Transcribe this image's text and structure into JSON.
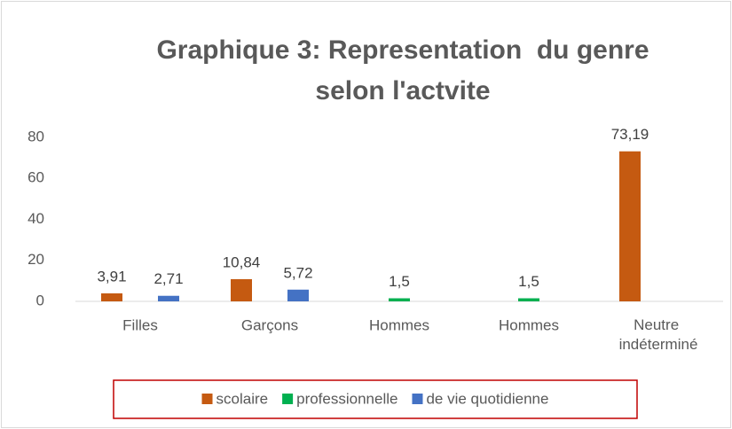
{
  "chart_data": {
    "type": "bar",
    "title": [
      "Graphique 3: Representation  du genre",
      "selon l'actvite"
    ],
    "categories": [
      "Filles",
      "Garçons",
      "Hommes",
      "Hommes",
      "Neutre indéterminé"
    ],
    "series": [
      {
        "name": "scolaire",
        "color": "#c55a11",
        "values": [
          3.91,
          10.84,
          null,
          null,
          73.19
        ],
        "value_labels": [
          "3,91",
          "10,84",
          null,
          null,
          "73,19"
        ]
      },
      {
        "name": "professionnelle",
        "color": "#00b050",
        "values": [
          null,
          null,
          1.5,
          1.5,
          null
        ],
        "value_labels": [
          null,
          null,
          "1,5",
          "1,5",
          null
        ]
      },
      {
        "name": "de vie quotidienne",
        "color": "#4472c4",
        "values": [
          2.71,
          5.72,
          null,
          null,
          null
        ],
        "value_labels": [
          "2,71",
          "5,72",
          null,
          null,
          null
        ]
      }
    ],
    "ylim": [
      0,
      80
    ],
    "yticks": [
      0,
      20,
      40,
      60,
      80
    ],
    "grid": false,
    "legend": "bottom"
  }
}
